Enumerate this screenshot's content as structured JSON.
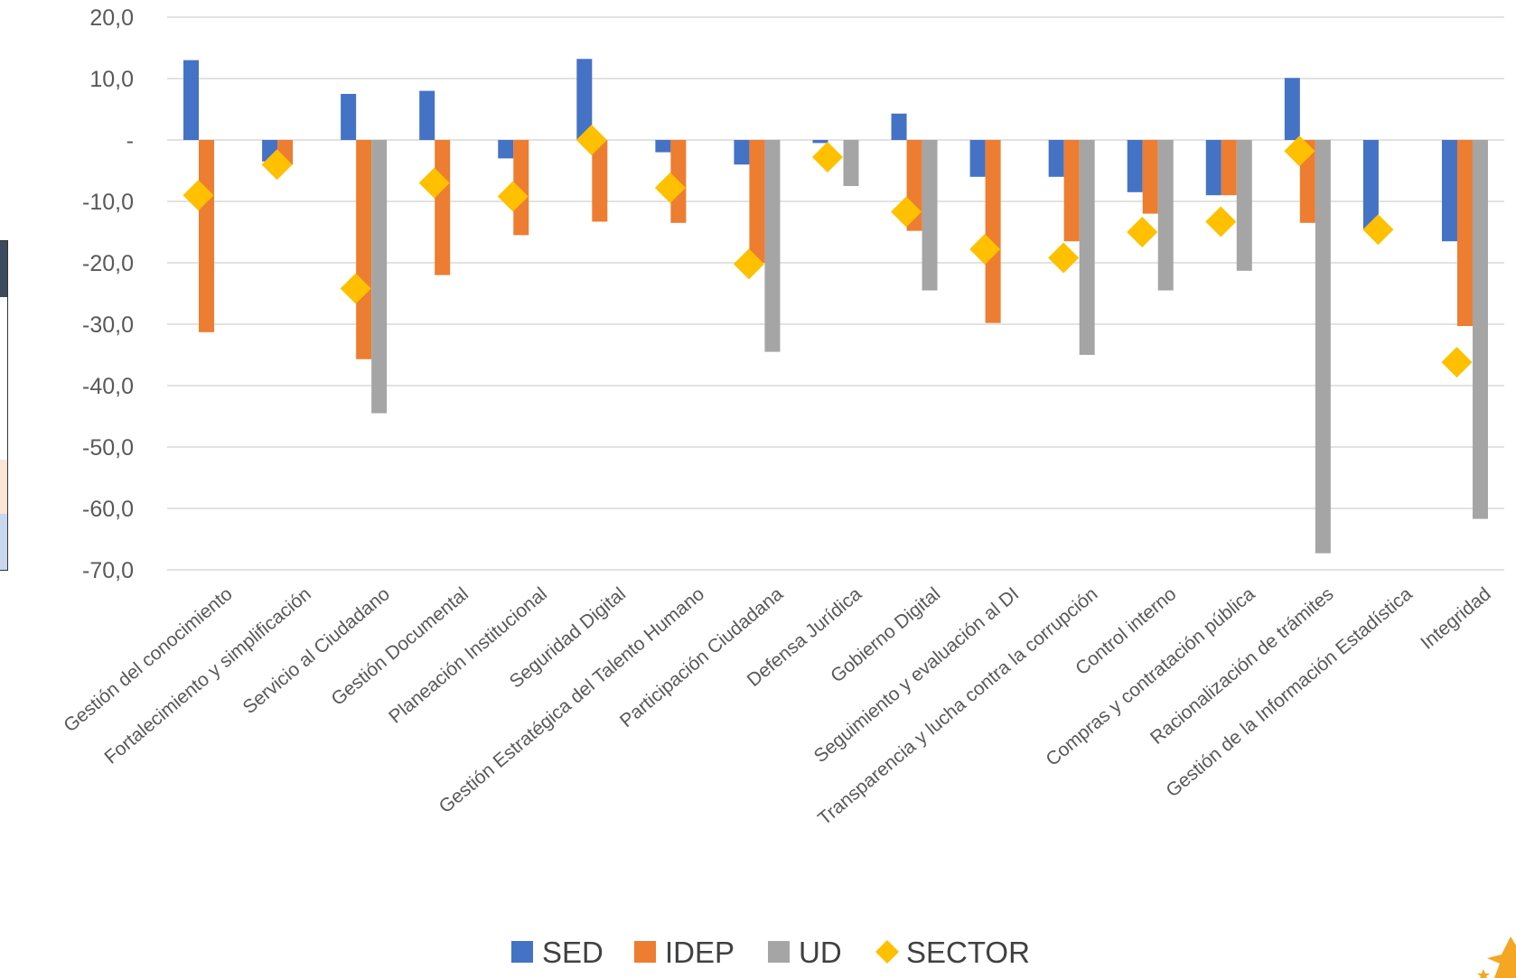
{
  "colors": {
    "SED": "#4472C4",
    "IDEP": "#ED7D31",
    "UD": "#A5A5A5",
    "SECTOR": "#FFC000",
    "grid": "#D9D9D9",
    "text": "#595959"
  },
  "chart_data": {
    "type": "bar",
    "title": "",
    "xlabel": "",
    "ylabel": "",
    "ylim": [
      -70,
      20
    ],
    "y_ticks": [
      "20,0",
      "10,0",
      "-",
      "-10,0",
      "-20,0",
      "-30,0",
      "-40,0",
      "-50,0",
      "-60,0",
      "-70,0"
    ],
    "grid": true,
    "legend_position": "bottom",
    "categories": [
      "Gestión del conocimiento",
      "Fortalecimiento y simplificación",
      "Servicio al Ciudadano",
      "Gestión Documental",
      "Planeación Institucional",
      "Seguridad Digital",
      "Gestión Estratégica del Talento Humano",
      "Participación Ciudadana",
      "Defensa Jurídica",
      "Gobierno Digital",
      "Seguimiento y evaluación al DI",
      "Transparencia y lucha contra la corrupción",
      "Control interno",
      "Compras y contratación pública",
      "Racionalización de trámites",
      "Gestión de la Información Estadística",
      "Integridad"
    ],
    "series": [
      {
        "name": "SED",
        "type": "bar",
        "values": [
          13.0,
          -3.5,
          7.5,
          8.0,
          -3.0,
          13.2,
          -2.0,
          -4.0,
          -0.5,
          4.3,
          -6.0,
          -6.0,
          -8.5,
          -9.0,
          10.1,
          -14.5,
          -16.5
        ]
      },
      {
        "name": "IDEP",
        "type": "bar",
        "values": [
          -31.3,
          -4.0,
          -35.7,
          -22.0,
          -15.5,
          -13.3,
          -13.5,
          -20.0,
          0,
          -14.8,
          -29.8,
          -16.5,
          -12.0,
          -9.0,
          -13.5,
          0,
          -30.3
        ]
      },
      {
        "name": "UD",
        "type": "bar",
        "values": [
          0,
          0,
          -44.5,
          0,
          0,
          0,
          0,
          -34.5,
          -7.5,
          -24.5,
          0,
          -35.0,
          -24.5,
          -21.3,
          -67.3,
          0,
          -61.7
        ]
      },
      {
        "name": "SECTOR",
        "type": "marker",
        "values": [
          -9.0,
          -4.0,
          -24.2,
          -7.0,
          -9.2,
          0,
          -7.8,
          -20.2,
          -2.8,
          -11.7,
          -17.8,
          -19.2,
          -15.0,
          -13.3,
          -1.8,
          -14.6,
          -36.2
        ]
      }
    ]
  }
}
